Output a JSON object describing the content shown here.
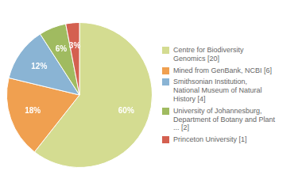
{
  "chart_data": {
    "type": "pie",
    "categories": [
      "Centre for Biodiversity\nGenomics [20]",
      "Mined from GenBank, NCBI [6]",
      "Smithsonian Institution,\nNational Museum of Natural\nHistory [4]",
      "University of Johannesburg,\nDepartment of Botany and Plant\n... [2]",
      "Princeton University [1]"
    ],
    "values": [
      60,
      18,
      12,
      6,
      3
    ],
    "value_labels": [
      "60%",
      "18%",
      "12%",
      "6%",
      "3%"
    ],
    "colors": [
      "#d4dc91",
      "#f0a050",
      "#8ab4d4",
      "#a0bb60",
      "#d46050"
    ],
    "data_labels": true,
    "legend": "right"
  }
}
